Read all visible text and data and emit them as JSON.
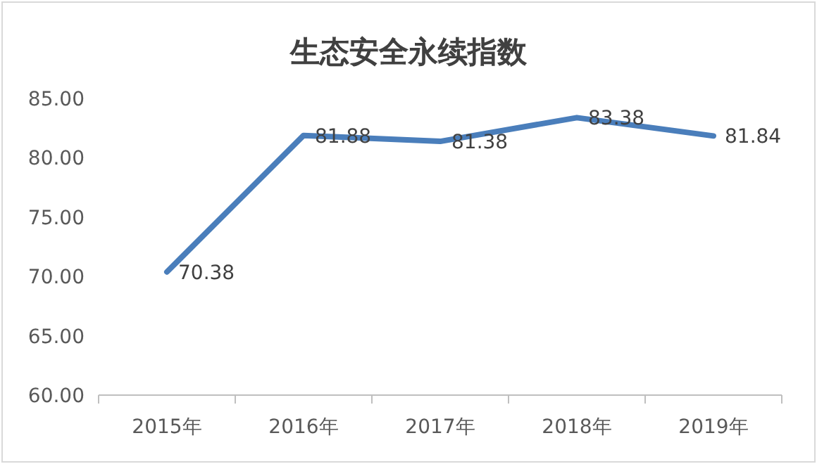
{
  "chart_data": {
    "type": "line",
    "title": "生态安全永续指数",
    "categories": [
      "2015年",
      "2016年",
      "2017年",
      "2018年",
      "2019年"
    ],
    "values": [
      70.38,
      81.88,
      81.38,
      83.38,
      81.84
    ],
    "color": "#4a7ebb",
    "ylim": [
      60,
      85
    ],
    "yticks": [
      {
        "value": 60,
        "label": "60.00"
      },
      {
        "value": 65,
        "label": "65.00"
      },
      {
        "value": 70,
        "label": "70.00"
      },
      {
        "value": 75,
        "label": "75.00"
      },
      {
        "value": 80,
        "label": "80.00"
      },
      {
        "value": 85,
        "label": "85.00"
      }
    ],
    "data_labels": true
  }
}
